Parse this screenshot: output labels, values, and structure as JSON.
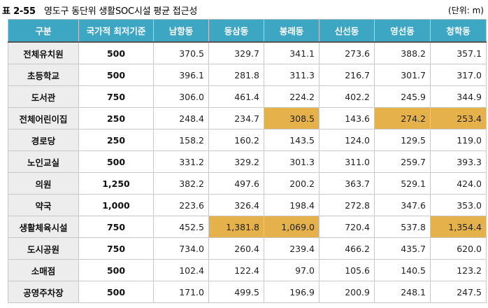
{
  "caption": {
    "number": "표 2-55",
    "title": "영도구 동단위 생활SOC시설 평균 접근성",
    "unit": "(단위: m)"
  },
  "table": {
    "headers": [
      "구분",
      "국가적 최저기준",
      "남항동",
      "동삼동",
      "봉래동",
      "신선동",
      "영선동",
      "청학동"
    ],
    "rows": [
      {
        "name": "전체유치원",
        "standard": "500",
        "values": [
          "370.5",
          "329.7",
          "341.1",
          "273.6",
          "388.2",
          "357.1"
        ],
        "highlight": [
          false,
          false,
          false,
          false,
          false,
          false
        ]
      },
      {
        "name": "초등학교",
        "standard": "500",
        "values": [
          "396.1",
          "281.8",
          "311.3",
          "216.7",
          "301.7",
          "317.0"
        ],
        "highlight": [
          false,
          false,
          false,
          false,
          false,
          false
        ]
      },
      {
        "name": "도서관",
        "standard": "750",
        "values": [
          "306.0",
          "461.4",
          "224.2",
          "402.2",
          "245.9",
          "344.9"
        ],
        "highlight": [
          false,
          false,
          false,
          false,
          false,
          false
        ]
      },
      {
        "name": "전체어린이집",
        "standard": "250",
        "values": [
          "248.4",
          "234.7",
          "308.5",
          "143.6",
          "274.2",
          "253.4"
        ],
        "highlight": [
          false,
          false,
          true,
          false,
          true,
          true
        ]
      },
      {
        "name": "경로당",
        "standard": "250",
        "values": [
          "158.2",
          "160.2",
          "143.5",
          "124.0",
          "129.5",
          "119.0"
        ],
        "highlight": [
          false,
          false,
          false,
          false,
          false,
          false
        ]
      },
      {
        "name": "노인교실",
        "standard": "500",
        "values": [
          "331.2",
          "329.2",
          "301.3",
          "311.0",
          "259.7",
          "393.3"
        ],
        "highlight": [
          false,
          false,
          false,
          false,
          false,
          false
        ]
      },
      {
        "name": "의원",
        "standard": "1,250",
        "values": [
          "382.2",
          "497.6",
          "200.2",
          "363.7",
          "529.1",
          "424.0"
        ],
        "highlight": [
          false,
          false,
          false,
          false,
          false,
          false
        ]
      },
      {
        "name": "약국",
        "standard": "1,000",
        "values": [
          "223.6",
          "326.4",
          "198.4",
          "272.8",
          "347.6",
          "353.0"
        ],
        "highlight": [
          false,
          false,
          false,
          false,
          false,
          false
        ]
      },
      {
        "name": "생활체육시설",
        "standard": "750",
        "values": [
          "452.5",
          "1,381.8",
          "1,069.0",
          "720.4",
          "537.8",
          "1,354.4"
        ],
        "highlight": [
          false,
          true,
          true,
          false,
          false,
          true
        ]
      },
      {
        "name": "도시공원",
        "standard": "750",
        "values": [
          "734.0",
          "260.4",
          "239.4",
          "466.2",
          "435.7",
          "620.0"
        ],
        "highlight": [
          false,
          false,
          false,
          false,
          false,
          false
        ]
      },
      {
        "name": "소매점",
        "standard": "500",
        "values": [
          "102.4",
          "122.4",
          "97.0",
          "105.6",
          "140.5",
          "123.2"
        ],
        "highlight": [
          false,
          false,
          false,
          false,
          false,
          false
        ]
      },
      {
        "name": "공영주차장",
        "standard": "500",
        "values": [
          "171.0",
          "499.5",
          "196.9",
          "200.9",
          "248.1",
          "247.5"
        ],
        "highlight": [
          false,
          false,
          false,
          false,
          false,
          false
        ]
      }
    ]
  },
  "colors": {
    "header_bg": "#3da6c2",
    "rowhead_bg": "#ededed",
    "highlight": "#e5b14a"
  }
}
